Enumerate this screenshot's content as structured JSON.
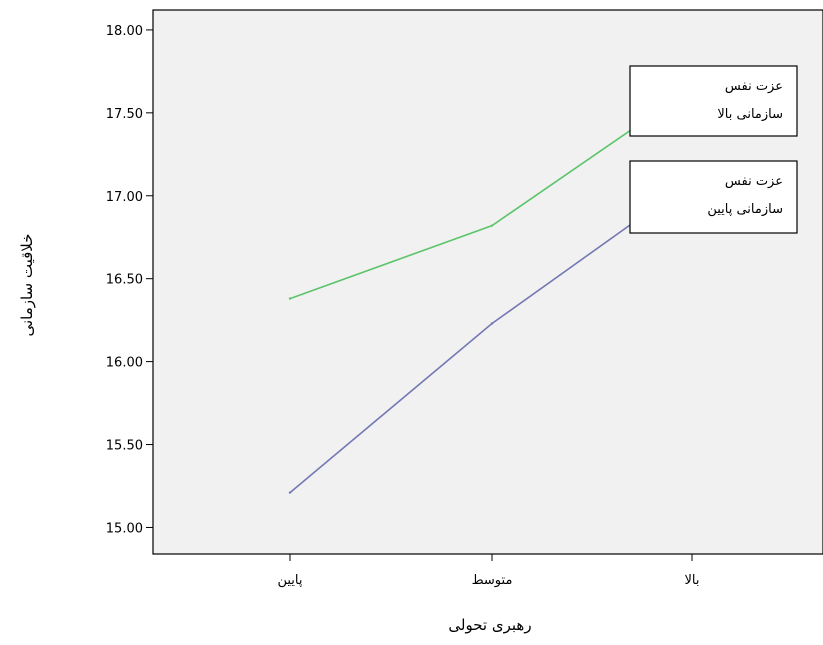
{
  "chart_data": {
    "type": "line",
    "title": "",
    "xlabel": "رهبری تحولی",
    "ylabel": "خلاقیت سازمانی",
    "categories": [
      "پایین",
      "متوسط",
      "بالا"
    ],
    "ylim": [
      14.84,
      18.12
    ],
    "yticks": [
      "15.00",
      "15.50",
      "16.00",
      "16.50",
      "17.00",
      "17.50",
      "18.00"
    ],
    "grid": false,
    "series": [
      {
        "name": "",
        "label_lines": [
          "عزت نفس",
          "سازمانی بالا"
        ],
        "color": "#5cc46a",
        "values": [
          16.38,
          16.82,
          17.65
        ]
      },
      {
        "name": "",
        "label_lines": [
          "عزت نفس",
          "سازمانی پایین"
        ],
        "color": "#7478b4",
        "values": [
          15.21,
          16.23,
          17.09
        ]
      }
    ],
    "colors": {
      "plot_bg": "#f1f1f1",
      "axis": "#000000"
    }
  }
}
